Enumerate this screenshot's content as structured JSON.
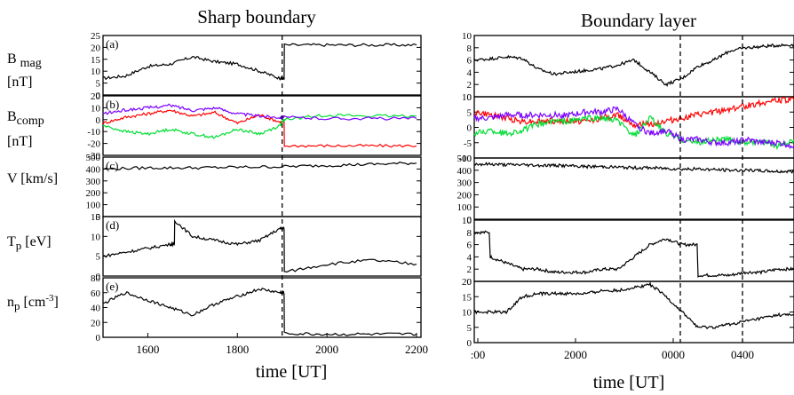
{
  "left": {
    "title": "Sharp boundary",
    "xlabel": "time [UT]",
    "xticks": [
      "1600",
      "1800",
      "2000",
      "2200"
    ],
    "row_labels": [
      {
        "name": "B mag",
        "sub": "mag",
        "main": "B",
        "unit": "[nT]"
      },
      {
        "name": "B comp",
        "sub": "comp",
        "main": "B",
        "unit": "[nT]"
      },
      {
        "name": "V",
        "main": "V [km/s]"
      },
      {
        "name": "Tp",
        "main": "T",
        "sub": "p",
        "unit": "[eV]"
      },
      {
        "name": "np",
        "main": "n",
        "sub": "p",
        "unit": "[cm",
        "sup": "-3",
        "unit_end": "]"
      }
    ],
    "panel_letters": [
      "(a)",
      "(b)",
      "(c)",
      "(d)",
      "(e)"
    ],
    "yticks": [
      [
        "0",
        "5",
        "10",
        "15",
        "20",
        "25"
      ],
      [
        "-30",
        "-20",
        "-10",
        "0",
        "10",
        "20"
      ],
      [
        "0",
        "100",
        "200",
        "300",
        "400",
        "500"
      ],
      [
        "0",
        "5",
        "10",
        "15"
      ],
      [
        "0",
        "20",
        "40",
        "60",
        "80"
      ]
    ]
  },
  "right": {
    "title": "Boundary layer",
    "xlabel": "time [UT]",
    "xticks": [
      ":00",
      "2000",
      "0000",
      "0400"
    ],
    "yticks": [
      [
        "0",
        "2",
        "4",
        "6",
        "8",
        "10"
      ],
      [
        "-10",
        "-5",
        "0",
        "5",
        "10"
      ],
      [
        "0",
        "100",
        "200",
        "300",
        "400",
        "500"
      ],
      [
        "0",
        "2",
        "4",
        "6",
        "8",
        "10"
      ],
      [
        "0",
        "5",
        "10",
        "15",
        "20"
      ]
    ]
  },
  "colors": {
    "red": "#ff0000",
    "green": "#00dd33",
    "purple": "#7a00ff",
    "black": "#000000"
  },
  "chart_data": [
    {
      "type": "line",
      "title": "Sharp boundary",
      "xlabel": "time [UT]",
      "xlim": [
        1500,
        2210
      ],
      "boundary_time": 1900,
      "panels": [
        {
          "id": "a",
          "ylabel": "B mag [nT]",
          "ylim": [
            0,
            25
          ],
          "series": [
            {
              "color": "black",
              "x": [
                1500,
                1550,
                1600,
                1650,
                1700,
                1750,
                1800,
                1850,
                1895,
                1905,
                2000,
                2100,
                2200
              ],
              "y": [
                7,
                8,
                12,
                13,
                16,
                14,
                13,
                10,
                7,
                21,
                21,
                21,
                21
              ]
            }
          ]
        },
        {
          "id": "b",
          "ylabel": "B comp [nT]",
          "ylim": [
            -30,
            20
          ],
          "series": [
            {
              "color": "red",
              "x": [
                1500,
                1550,
                1600,
                1650,
                1700,
                1750,
                1800,
                1850,
                1895,
                1905,
                2000,
                2100,
                2200
              ],
              "y": [
                -3,
                2,
                5,
                8,
                3,
                6,
                -3,
                4,
                -2,
                -22,
                -22,
                -22,
                -22
              ]
            },
            {
              "color": "green",
              "x": [
                1500,
                1550,
                1600,
                1650,
                1700,
                1750,
                1800,
                1850,
                1895,
                1905,
                2000,
                2100,
                2200
              ],
              "y": [
                -5,
                -10,
                -12,
                -8,
                -12,
                -15,
                -8,
                -12,
                -5,
                0,
                4,
                3,
                3
              ]
            },
            {
              "color": "purple",
              "x": [
                1500,
                1550,
                1600,
                1650,
                1700,
                1750,
                1800,
                1850,
                1895,
                1905,
                2000,
                2100,
                2200
              ],
              "y": [
                5,
                8,
                10,
                12,
                8,
                10,
                5,
                3,
                2,
                2,
                1,
                1,
                1
              ]
            }
          ]
        },
        {
          "id": "c",
          "ylabel": "V [km/s]",
          "ylim": [
            0,
            500
          ],
          "series": [
            {
              "color": "black",
              "x": [
                1500,
                1600,
                1700,
                1800,
                1900,
                2000,
                2100,
                2200
              ],
              "y": [
                400,
                410,
                410,
                415,
                420,
                430,
                440,
                450
              ]
            }
          ]
        },
        {
          "id": "d",
          "ylabel": "Tp [eV]",
          "ylim": [
            0,
            15
          ],
          "series": [
            {
              "color": "black",
              "x": [
                1500,
                1550,
                1600,
                1650,
                1660,
                1700,
                1750,
                1800,
                1850,
                1895,
                1905,
                2000,
                2100,
                2200
              ],
              "y": [
                5,
                6,
                7,
                8,
                14,
                10,
                9,
                8,
                9,
                12,
                1,
                3,
                4,
                3
              ]
            }
          ]
        },
        {
          "id": "e",
          "ylabel": "np [cm-3]",
          "ylim": [
            0,
            80
          ],
          "series": [
            {
              "color": "black",
              "x": [
                1500,
                1550,
                1600,
                1650,
                1700,
                1750,
                1800,
                1850,
                1895,
                1905,
                2000,
                2100,
                2200
              ],
              "y": [
                45,
                60,
                50,
                40,
                30,
                45,
                55,
                65,
                60,
                5,
                4,
                4,
                4
              ]
            }
          ]
        }
      ]
    },
    {
      "type": "line",
      "title": "Boundary layer",
      "xlabel": "time [UT]",
      "boundary_times": [
        "0130",
        "0320"
      ],
      "panels": [
        {
          "id": "a",
          "ylim": [
            0,
            10
          ],
          "series": [
            {
              "color": "black",
              "y": [
                6,
                6.2,
                6.5,
                6.3,
                4.5,
                3.7,
                4,
                4.3,
                4.6,
                5.2,
                6,
                4,
                2,
                3,
                5,
                6,
                7.5,
                8,
                8.2,
                8.4,
                8.5
              ]
            }
          ]
        },
        {
          "id": "b",
          "ylim": [
            -10,
            10
          ],
          "series": [
            {
              "color": "red",
              "y": [
                5,
                4,
                3,
                2,
                2,
                2,
                2,
                2,
                3,
                4,
                1,
                1,
                2,
                3,
                4,
                5,
                6,
                7,
                8,
                9,
                9
              ]
            },
            {
              "color": "green",
              "y": [
                -2,
                -1,
                -2,
                -1,
                1,
                2,
                2,
                3,
                3,
                2,
                -3,
                3,
                -2,
                -4,
                -5,
                -4,
                -4,
                -5,
                -5,
                -6,
                -4
              ]
            },
            {
              "color": "purple",
              "y": [
                3,
                3,
                4,
                4,
                4,
                4,
                4,
                5,
                5,
                6,
                1,
                -2,
                -1,
                -4,
                -4,
                -5,
                -5,
                -4,
                -5,
                -5,
                -6
              ]
            }
          ]
        },
        {
          "id": "c",
          "ylim": [
            0,
            500
          ],
          "series": [
            {
              "color": "black",
              "y": [
                450,
                450,
                445,
                445,
                440,
                440,
                435,
                430,
                430,
                425,
                420,
                420,
                415,
                410,
                410,
                405,
                400,
                400,
                395,
                390,
                390
              ]
            }
          ]
        },
        {
          "id": "d",
          "ylim": [
            0,
            10
          ],
          "series": [
            {
              "color": "black",
              "y": [
                8,
                4,
                3,
                2,
                2,
                1.5,
                1.5,
                1.5,
                2,
                2,
                4,
                6,
                7,
                6,
                1,
                1,
                1,
                1.5,
                1.5,
                2,
                2
              ]
            }
          ]
        },
        {
          "id": "e",
          "ylim": [
            0,
            20
          ],
          "series": [
            {
              "color": "black",
              "y": [
                10,
                10,
                10,
                15,
                16,
                16,
                16,
                16,
                17,
                17,
                18,
                19,
                15,
                10,
                5,
                5,
                6,
                7,
                8,
                9,
                9
              ]
            }
          ]
        }
      ]
    }
  ]
}
